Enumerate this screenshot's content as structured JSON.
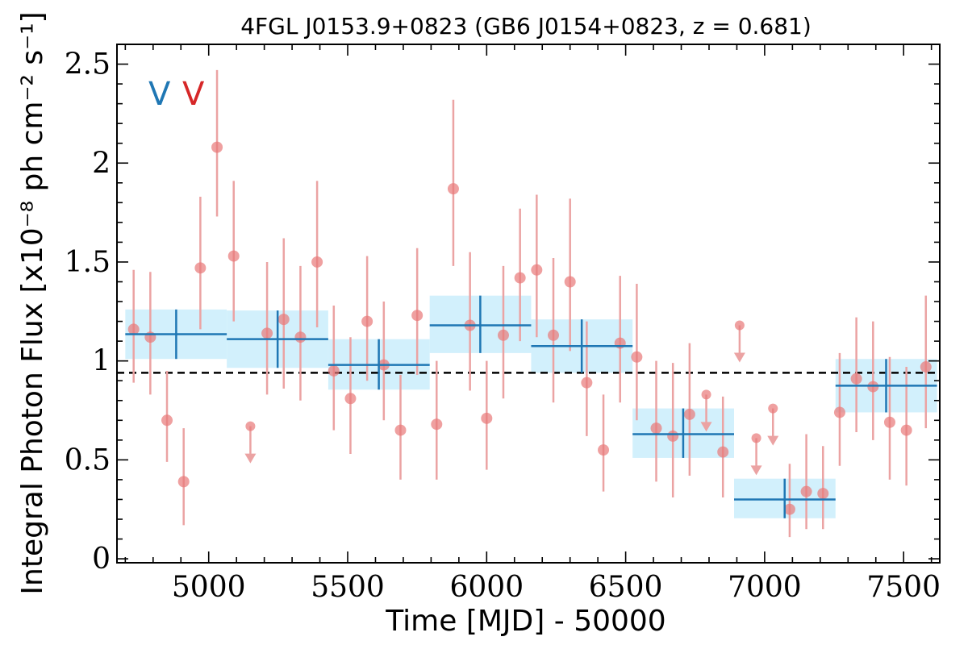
{
  "chart_data": {
    "type": "scatter",
    "title": "4FGL J0153.9+0823 (GB6 J0154+0823, z = 0.681)",
    "xlabel": "Time [MJD] - 50000",
    "ylabel": "Integral Photon Flux [x10⁻⁸ ph cm⁻² s⁻¹]",
    "xlim": [
      4670,
      7630
    ],
    "ylim": [
      -0.02,
      2.6
    ],
    "xticks": [
      "5000",
      "5500",
      "6000",
      "6500",
      "7000",
      "7500"
    ],
    "yticks": [
      "0",
      "0.5",
      "1",
      "1.5",
      "2",
      "2.5"
    ],
    "annotations": [
      {
        "text": "V",
        "color": "#1f77b4"
      },
      {
        "text": "V",
        "color": "#d62728"
      }
    ],
    "reference_line": {
      "y": 0.94,
      "style": "dashed",
      "color": "#000000"
    },
    "colors": {
      "bins": "#1f77b4",
      "bin_band": "#cdeefc",
      "points": "#e87878",
      "errors": "#eba3a3"
    },
    "series": [
      {
        "kind": "binned",
        "bins": [
          {
            "x0": 4700,
            "x1": 5065,
            "xc": 4883,
            "y": 1.135,
            "ylo": 1.01,
            "yhi": 1.26
          },
          {
            "x0": 5065,
            "x1": 5430,
            "xc": 5248,
            "y": 1.11,
            "ylo": 0.965,
            "yhi": 1.255
          },
          {
            "x0": 5430,
            "x1": 5795,
            "xc": 5612,
            "y": 0.98,
            "ylo": 0.855,
            "yhi": 1.11
          },
          {
            "x0": 5795,
            "x1": 6160,
            "xc": 5977,
            "y": 1.18,
            "ylo": 1.04,
            "yhi": 1.33
          },
          {
            "x0": 6160,
            "x1": 6525,
            "xc": 6342,
            "y": 1.075,
            "ylo": 0.94,
            "yhi": 1.21
          },
          {
            "x0": 6525,
            "x1": 6890,
            "xc": 6707,
            "y": 0.63,
            "ylo": 0.51,
            "yhi": 0.76
          },
          {
            "x0": 6890,
            "x1": 7255,
            "xc": 7072,
            "y": 0.3,
            "ylo": 0.205,
            "yhi": 0.405
          },
          {
            "x0": 7255,
            "x1": 7620,
            "xc": 7437,
            "y": 0.875,
            "ylo": 0.74,
            "yhi": 1.01
          }
        ]
      },
      {
        "kind": "points",
        "points": [
          {
            "x": 4730,
            "y": 1.16,
            "ylo": 0.89,
            "yhi": 1.46
          },
          {
            "x": 4790,
            "y": 1.12,
            "ylo": 0.83,
            "yhi": 1.45
          },
          {
            "x": 4850,
            "y": 0.7,
            "ylo": 0.49,
            "yhi": 0.95
          },
          {
            "x": 4910,
            "y": 0.39,
            "ylo": 0.17,
            "yhi": 0.66
          },
          {
            "x": 4970,
            "y": 1.47,
            "ylo": 1.16,
            "yhi": 1.83
          },
          {
            "x": 5030,
            "y": 2.08,
            "ylo": 1.73,
            "yhi": 2.47
          },
          {
            "x": 5090,
            "y": 1.53,
            "ylo": 1.2,
            "yhi": 1.91
          },
          {
            "x": 5150,
            "y": 0.67,
            "ul": true
          },
          {
            "x": 5210,
            "y": 1.14,
            "ylo": 0.83,
            "yhi": 1.5
          },
          {
            "x": 5270,
            "y": 1.21,
            "ylo": 0.86,
            "yhi": 1.62
          },
          {
            "x": 5330,
            "y": 1.12,
            "ylo": 0.8,
            "yhi": 1.48
          },
          {
            "x": 5390,
            "y": 1.5,
            "ylo": 1.17,
            "yhi": 1.91
          },
          {
            "x": 5450,
            "y": 0.95,
            "ylo": 0.65,
            "yhi": 1.28
          },
          {
            "x": 5510,
            "y": 0.81,
            "ylo": 0.53,
            "yhi": 1.12
          },
          {
            "x": 5570,
            "y": 1.2,
            "ylo": 0.9,
            "yhi": 1.53
          },
          {
            "x": 5630,
            "y": 0.98,
            "ylo": 0.7,
            "yhi": 1.3
          },
          {
            "x": 5690,
            "y": 0.65,
            "ylo": 0.4,
            "yhi": 0.93
          },
          {
            "x": 5750,
            "y": 1.23,
            "ylo": 0.93,
            "yhi": 1.57
          },
          {
            "x": 5820,
            "y": 0.68,
            "ylo": 0.4,
            "yhi": 1.0
          },
          {
            "x": 5880,
            "y": 1.87,
            "ylo": 1.48,
            "yhi": 2.32
          },
          {
            "x": 5940,
            "y": 1.18,
            "ylo": 0.85,
            "yhi": 1.55
          },
          {
            "x": 6000,
            "y": 0.71,
            "ylo": 0.45,
            "yhi": 1.0
          },
          {
            "x": 6060,
            "y": 1.13,
            "ylo": 0.81,
            "yhi": 1.48
          },
          {
            "x": 6120,
            "y": 1.42,
            "ylo": 1.1,
            "yhi": 1.77
          },
          {
            "x": 6180,
            "y": 1.46,
            "ylo": 1.12,
            "yhi": 1.84
          },
          {
            "x": 6240,
            "y": 1.13,
            "ylo": 0.79,
            "yhi": 1.52
          },
          {
            "x": 6300,
            "y": 1.4,
            "ylo": 1.05,
            "yhi": 1.82
          },
          {
            "x": 6360,
            "y": 0.89,
            "ylo": 0.62,
            "yhi": 1.2
          },
          {
            "x": 6420,
            "y": 0.55,
            "ylo": 0.34,
            "yhi": 0.83
          },
          {
            "x": 6480,
            "y": 1.09,
            "ylo": 0.79,
            "yhi": 1.43
          },
          {
            "x": 6540,
            "y": 1.02,
            "ylo": 0.7,
            "yhi": 1.39
          },
          {
            "x": 6610,
            "y": 0.66,
            "ylo": 0.39,
            "yhi": 1.0
          },
          {
            "x": 6670,
            "y": 0.62,
            "ylo": 0.31,
            "yhi": 0.99
          },
          {
            "x": 6730,
            "y": 0.73,
            "ylo": 0.42,
            "yhi": 1.09
          },
          {
            "x": 6790,
            "y": 0.83,
            "ul": true
          },
          {
            "x": 6850,
            "y": 0.54,
            "ylo": 0.31,
            "yhi": 0.82
          },
          {
            "x": 6910,
            "y": 1.18,
            "ul": true
          },
          {
            "x": 6970,
            "y": 0.61,
            "ul": true
          },
          {
            "x": 7030,
            "y": 0.76,
            "ul": true
          },
          {
            "x": 7090,
            "y": 0.25,
            "ylo": 0.11,
            "yhi": 0.48
          },
          {
            "x": 7150,
            "y": 0.34,
            "ylo": 0.15,
            "yhi": 0.63
          },
          {
            "x": 7210,
            "y": 0.33,
            "ylo": 0.15,
            "yhi": 0.57
          },
          {
            "x": 7270,
            "y": 0.74,
            "ylo": 0.47,
            "yhi": 1.04
          },
          {
            "x": 7330,
            "y": 0.91,
            "ylo": 0.64,
            "yhi": 1.22
          },
          {
            "x": 7390,
            "y": 0.87,
            "ylo": 0.6,
            "yhi": 1.2
          },
          {
            "x": 7450,
            "y": 0.69,
            "ylo": 0.4,
            "yhi": 1.02
          },
          {
            "x": 7510,
            "y": 0.65,
            "ylo": 0.37,
            "yhi": 0.97
          },
          {
            "x": 7580,
            "y": 0.97,
            "ylo": 0.66,
            "yhi": 1.33
          }
        ]
      }
    ]
  }
}
